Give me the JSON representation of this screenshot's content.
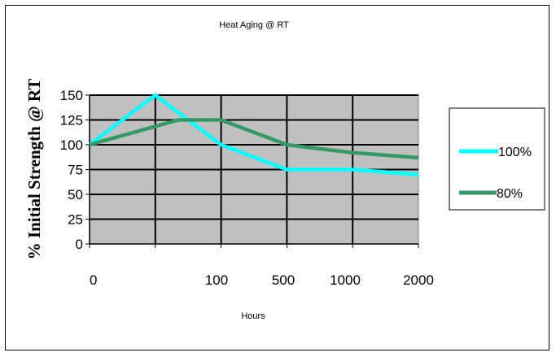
{
  "chart_data": {
    "type": "line",
    "title": "Heat Aging @ RT",
    "xlabel": "Hours",
    "ylabel": "% Initial Strength @ RT",
    "categories": [
      "0",
      "",
      "100",
      "500",
      "1000",
      "2000"
    ],
    "x_tick_labels": [
      "0",
      "100",
      "500",
      "1000",
      "2000"
    ],
    "y_ticks": [
      0,
      25,
      50,
      75,
      100,
      125,
      150
    ],
    "ylim": [
      0,
      150
    ],
    "grid": true,
    "plot_background": "#c0c0c0",
    "legend_position": "right",
    "series": [
      {
        "name": "100%",
        "color": "#00ffff",
        "points": [
          [
            0,
            100
          ],
          [
            1,
            150
          ],
          [
            2,
            100
          ],
          [
            3,
            75
          ],
          [
            4,
            75
          ],
          [
            5,
            70
          ]
        ]
      },
      {
        "name": "80%",
        "color": "#339966",
        "points": [
          [
            0,
            100
          ],
          [
            1.35,
            125
          ],
          [
            2,
            125
          ],
          [
            3,
            100
          ],
          [
            4,
            92
          ],
          [
            5,
            87
          ]
        ]
      }
    ]
  }
}
